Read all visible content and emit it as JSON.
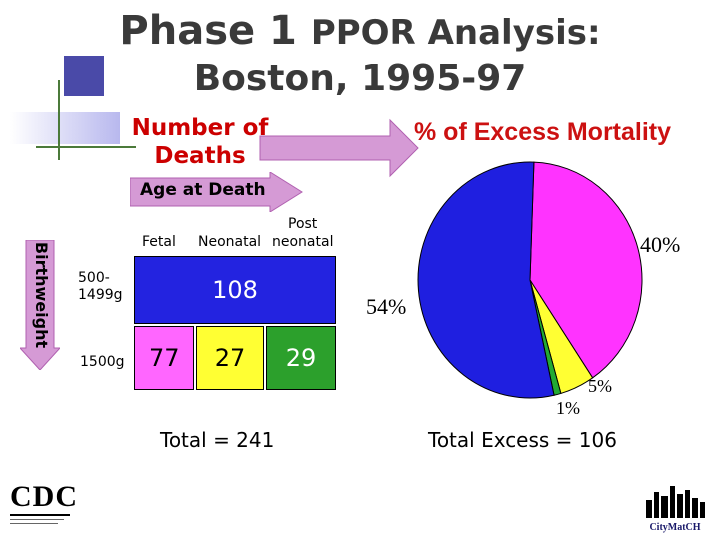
{
  "title": {
    "line1_a": "Phase 1 ",
    "line1_b": "PPOR Analysis:",
    "line2": "Boston, 1995-97"
  },
  "number_of_deaths_label": "Number of Deaths",
  "age_at_death_label": "Age at Death",
  "birthweight_label": "Birthweight",
  "columns": {
    "fetal": "Fetal",
    "neonatal": "Neonatal",
    "postneonatal_top": "Post",
    "postneonatal_bottom": "neonatal"
  },
  "rows": {
    "low": "500-1499g",
    "high": "1500g"
  },
  "cells": {
    "very_low_weight_all": "108",
    "fetal": "77",
    "neonatal": "27",
    "postneonatal": "29"
  },
  "total_label": "Total = 241",
  "pct_title": "% of Excess Mortality",
  "chart_data": {
    "type": "pie",
    "title": "% of Excess Mortality",
    "slices": [
      {
        "label": "54%",
        "value": 54,
        "color": "#1f1fe0"
      },
      {
        "label": "40%",
        "value": 40,
        "color": "#ff33ff"
      },
      {
        "label": "5%",
        "value": 5,
        "color": "#ffff33"
      },
      {
        "label": "1%",
        "value": 1,
        "color": "#22aa33"
      }
    ]
  },
  "total_excess_label": "Total Excess = 106",
  "logos": {
    "cdc": "CDC",
    "citymatch": "CityMatCH"
  },
  "colors": {
    "blue": "#1f1fe0",
    "pink": "#ff66ff",
    "yellow": "#ffff33",
    "arrow": "#cc66cc"
  }
}
